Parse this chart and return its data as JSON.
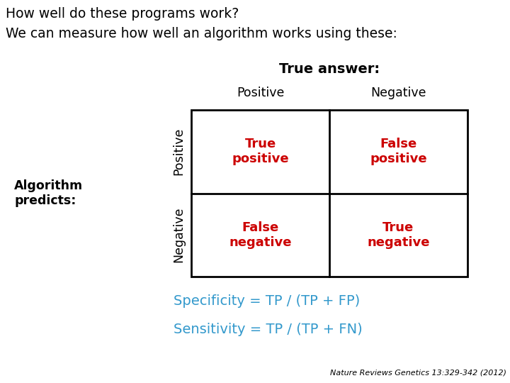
{
  "title_line1": "How well do these programs work?",
  "title_line2": "We can measure how well an algorithm works using these:",
  "true_answer_label": "True answer:",
  "col_labels": [
    "Positive",
    "Negative"
  ],
  "row_label_top": "Positive",
  "row_label_bottom": "Negative",
  "side_label": "Algorithm\npredicts:",
  "cells": [
    [
      "True\npositive",
      "False\npositive"
    ],
    [
      "False\nnegative",
      "True\nnegative"
    ]
  ],
  "cell_color": "#cc0000",
  "specificity_text": "Specificity = TP / (TP + FP)",
  "sensitivity_text": "Sensitivity = TP / (TP + FN)",
  "formula_color": "#3399cc",
  "citation": "Nature Reviews Genetics 13:329-342 (2012)",
  "bg_color": "#ffffff",
  "text_color": "#000000",
  "title_fontsize": 13.5,
  "label_fontsize": 12.5,
  "cell_fontsize": 13,
  "formula_fontsize": 14,
  "citation_fontsize": 8
}
